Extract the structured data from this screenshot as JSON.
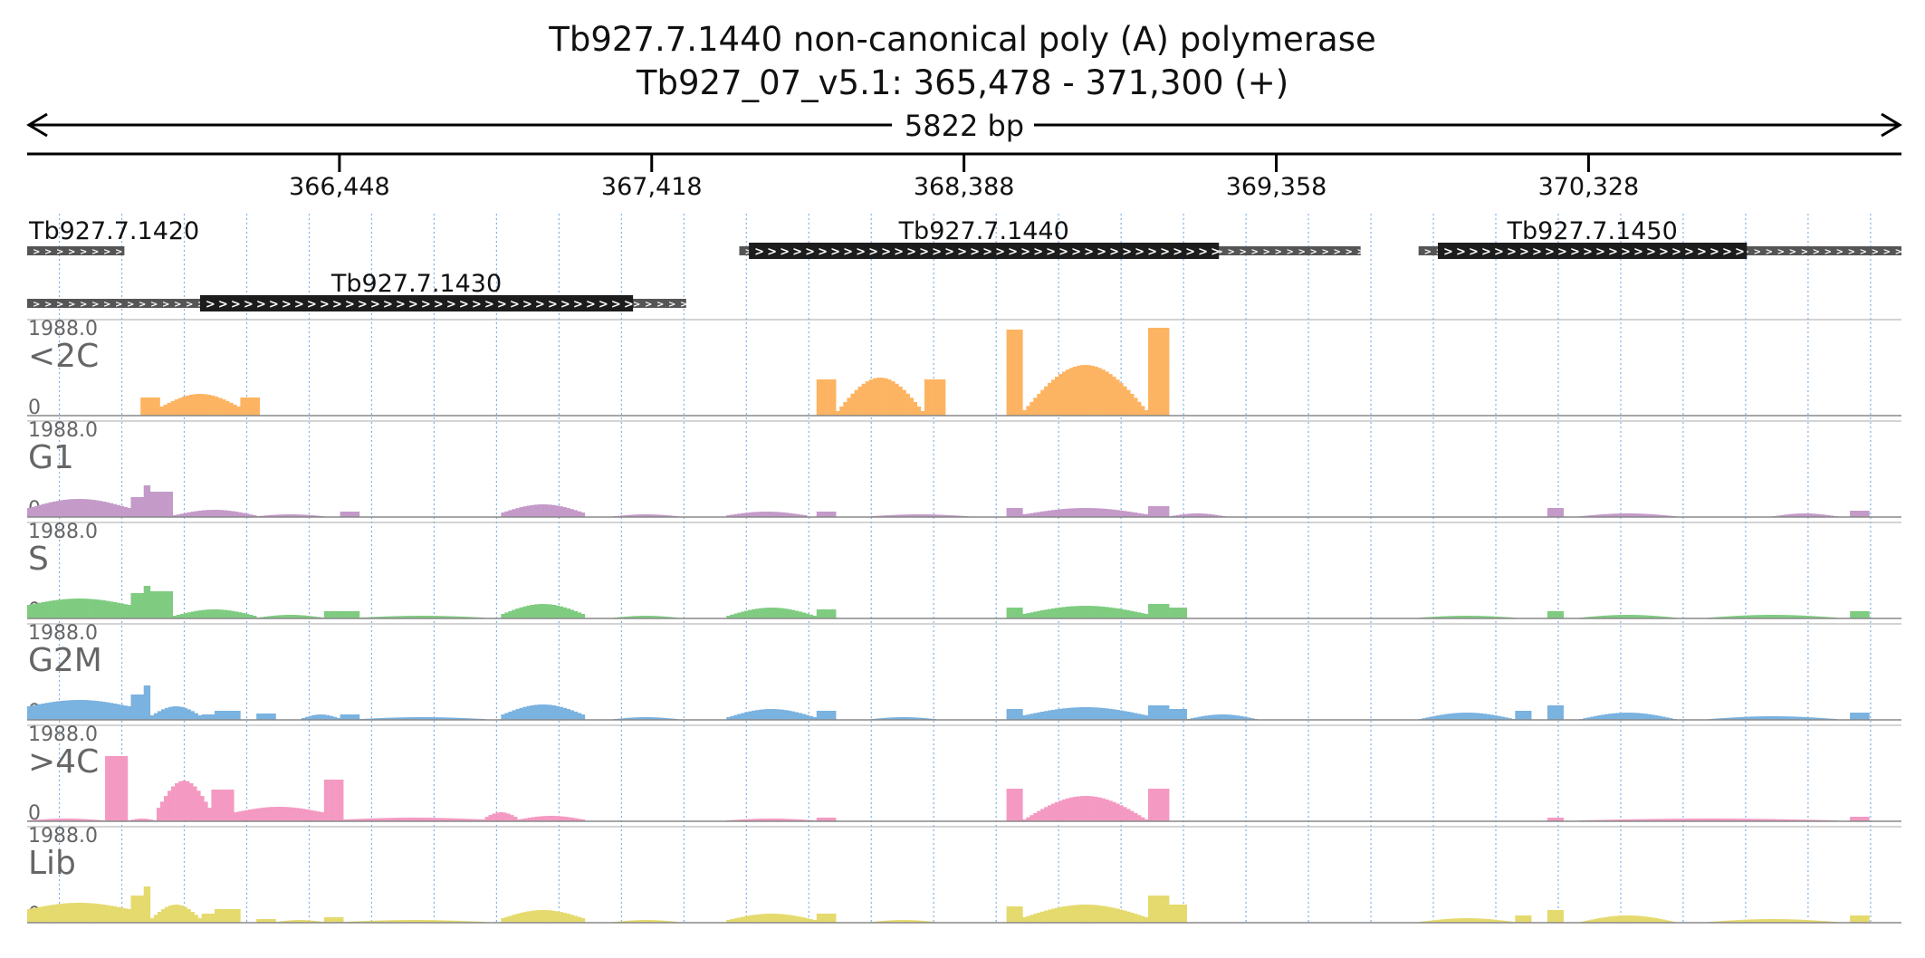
{
  "title": "Tb927.7.1440  non-canonical poly (A) polymerase",
  "subtitle": "Tb927_07_v5.1: 365,478 - 371,300 (+)",
  "span_label": "5822 bp",
  "region": {
    "start": 365478,
    "end": 371300
  },
  "ruler_ticks": [
    {
      "pos": 366448,
      "label": "366,448"
    },
    {
      "pos": 367418,
      "label": "367,418"
    },
    {
      "pos": 368388,
      "label": "368,388"
    },
    {
      "pos": 369358,
      "label": "369,358"
    },
    {
      "pos": 370328,
      "label": "370,328"
    }
  ],
  "genes": [
    {
      "id": "Tb927.7.1420",
      "row": 0,
      "utr": [
        365478,
        365780
      ],
      "cds": null
    },
    {
      "id": "Tb927.7.1430",
      "row": 1,
      "utr": [
        365478,
        367525
      ],
      "cds": [
        366015,
        367360
      ]
    },
    {
      "id": "Tb927.7.1440",
      "row": 0,
      "utr": [
        367690,
        369620
      ],
      "cds": [
        367720,
        369180
      ]
    },
    {
      "id": "Tb927.7.1450",
      "row": 0,
      "utr": [
        369800,
        371300
      ],
      "cds": [
        369860,
        370820
      ]
    }
  ],
  "track_max_label": "1988.0",
  "track_min_label": "0",
  "tracks": [
    {
      "name": "<2C",
      "color": "#fdb462"
    },
    {
      "name": "G1",
      "color": "#c49ac9"
    },
    {
      "name": "S",
      "color": "#7fcc81"
    },
    {
      "name": "G2M",
      "color": "#7ab2e0"
    },
    {
      "name": ">4C",
      "color": "#f49ac2"
    },
    {
      "name": "Lib",
      "color": "#e5da6d"
    }
  ],
  "track_profiles": {
    "<2C": [
      [
        365830,
        365890,
        0.2,
        0.2,
        "flat"
      ],
      [
        365890,
        366140,
        0.1,
        0.24,
        "hill"
      ],
      [
        366140,
        366200,
        0.2,
        0.2,
        "flat"
      ],
      [
        367930,
        367990,
        0.4,
        0.4,
        "flat"
      ],
      [
        367990,
        368265,
        0.05,
        0.42,
        "hill"
      ],
      [
        368265,
        368330,
        0.4,
        0.4,
        "flat"
      ],
      [
        368520,
        368570,
        0.92,
        0.95,
        "flat"
      ],
      [
        368570,
        368960,
        0.06,
        0.56,
        "hill"
      ],
      [
        368960,
        369025,
        0.97,
        0.97,
        "flat"
      ]
    ],
    "G1": [
      [
        365478,
        365800,
        0.1,
        0.2,
        "hill"
      ],
      [
        365800,
        365840,
        0.22,
        0.22,
        "flat"
      ],
      [
        365840,
        365860,
        0.35,
        0.35,
        "flat"
      ],
      [
        365860,
        365930,
        0.28,
        0.28,
        "flat"
      ],
      [
        365930,
        366190,
        0.02,
        0.08,
        "hill"
      ],
      [
        366190,
        366400,
        0.01,
        0.03,
        "hill"
      ],
      [
        366450,
        366510,
        0.06,
        0.06,
        "flat"
      ],
      [
        366950,
        367210,
        0.05,
        0.14,
        "hill"
      ],
      [
        367300,
        367500,
        0.01,
        0.03,
        "hill"
      ],
      [
        367650,
        367900,
        0.02,
        0.06,
        "hill"
      ],
      [
        367930,
        367990,
        0.06,
        0.06,
        "flat"
      ],
      [
        368100,
        368400,
        0.01,
        0.03,
        "hill"
      ],
      [
        368520,
        368570,
        0.1,
        0.1,
        "flat"
      ],
      [
        368570,
        368960,
        0.03,
        0.1,
        "hill"
      ],
      [
        368960,
        369025,
        0.12,
        0.12,
        "flat"
      ],
      [
        369025,
        369200,
        0.01,
        0.04,
        "hill"
      ],
      [
        370200,
        370250,
        0.1,
        0.1,
        "flat"
      ],
      [
        370300,
        370600,
        0.01,
        0.04,
        "hill"
      ],
      [
        370900,
        371100,
        0.01,
        0.04,
        "hill"
      ],
      [
        371140,
        371200,
        0.07,
        0.07,
        "flat"
      ]
    ],
    "S": [
      [
        365478,
        365800,
        0.15,
        0.22,
        "hill"
      ],
      [
        365800,
        365840,
        0.28,
        0.28,
        "flat"
      ],
      [
        365840,
        365860,
        0.36,
        0.36,
        "flat"
      ],
      [
        365860,
        365930,
        0.3,
        0.3,
        "flat"
      ],
      [
        365930,
        366190,
        0.03,
        0.1,
        "hill"
      ],
      [
        366190,
        366400,
        0.01,
        0.04,
        "hill"
      ],
      [
        366400,
        366460,
        0.08,
        0.08,
        "flat"
      ],
      [
        366460,
        366510,
        0.08,
        0.08,
        "flat"
      ],
      [
        366510,
        366900,
        0.01,
        0.03,
        "hill"
      ],
      [
        366950,
        367210,
        0.05,
        0.16,
        "hill"
      ],
      [
        367300,
        367500,
        0.01,
        0.03,
        "hill"
      ],
      [
        367650,
        367930,
        0.03,
        0.12,
        "hill"
      ],
      [
        367930,
        367990,
        0.1,
        0.1,
        "flat"
      ],
      [
        368520,
        368570,
        0.12,
        0.12,
        "flat"
      ],
      [
        368570,
        368960,
        0.05,
        0.14,
        "hill"
      ],
      [
        368960,
        369025,
        0.16,
        0.16,
        "flat"
      ],
      [
        369025,
        369080,
        0.12,
        0.12,
        "flat"
      ],
      [
        369800,
        370100,
        0.01,
        0.03,
        "hill"
      ],
      [
        370200,
        370250,
        0.08,
        0.08,
        "flat"
      ],
      [
        370300,
        370600,
        0.01,
        0.04,
        "hill"
      ],
      [
        370700,
        371100,
        0.01,
        0.04,
        "hill"
      ],
      [
        371140,
        371200,
        0.08,
        0.08,
        "flat"
      ]
    ],
    "G2M": [
      [
        365478,
        365800,
        0.15,
        0.22,
        "hill"
      ],
      [
        365800,
        365840,
        0.28,
        0.28,
        "flat"
      ],
      [
        365840,
        365860,
        0.38,
        0.38,
        "flat"
      ],
      [
        365860,
        366020,
        0.05,
        0.15,
        "hill"
      ],
      [
        366020,
        366060,
        0.06,
        0.06,
        "flat"
      ],
      [
        366060,
        366140,
        0.1,
        0.1,
        "flat"
      ],
      [
        366190,
        366250,
        0.07,
        0.07,
        "flat"
      ],
      [
        366330,
        366450,
        0.02,
        0.06,
        "hill"
      ],
      [
        366450,
        366510,
        0.06,
        0.06,
        "flat"
      ],
      [
        366510,
        366900,
        0.01,
        0.03,
        "hill"
      ],
      [
        366950,
        367210,
        0.06,
        0.17,
        "hill"
      ],
      [
        367300,
        367500,
        0.01,
        0.03,
        "hill"
      ],
      [
        367650,
        367930,
        0.03,
        0.12,
        "hill"
      ],
      [
        367930,
        367990,
        0.1,
        0.1,
        "flat"
      ],
      [
        368100,
        368300,
        0.01,
        0.03,
        "hill"
      ],
      [
        368520,
        368570,
        0.12,
        0.12,
        "flat"
      ],
      [
        368570,
        368960,
        0.05,
        0.14,
        "hill"
      ],
      [
        368960,
        369025,
        0.16,
        0.16,
        "flat"
      ],
      [
        369025,
        369080,
        0.12,
        0.12,
        "flat"
      ],
      [
        369080,
        369300,
        0.01,
        0.06,
        "hill"
      ],
      [
        369800,
        370100,
        0.01,
        0.08,
        "hill"
      ],
      [
        370100,
        370150,
        0.1,
        0.1,
        "flat"
      ],
      [
        370200,
        370250,
        0.16,
        0.16,
        "flat"
      ],
      [
        370300,
        370600,
        0.01,
        0.08,
        "hill"
      ],
      [
        370700,
        371100,
        0.01,
        0.04,
        "hill"
      ],
      [
        371140,
        371200,
        0.08,
        0.08,
        "flat"
      ]
    ],
    ">4C": [
      [
        365478,
        365720,
        0.01,
        0.03,
        "hill"
      ],
      [
        365720,
        365790,
        0.72,
        0.72,
        "flat"
      ],
      [
        365790,
        365880,
        0.01,
        0.03,
        "hill"
      ],
      [
        365880,
        366050,
        0.15,
        0.45,
        "hill"
      ],
      [
        366050,
        366120,
        0.35,
        0.35,
        "flat"
      ],
      [
        366120,
        366400,
        0.1,
        0.16,
        "hill"
      ],
      [
        366400,
        366460,
        0.46,
        0.46,
        "flat"
      ],
      [
        366460,
        366900,
        0.02,
        0.04,
        "hill"
      ],
      [
        366900,
        367000,
        0.05,
        0.1,
        "hill"
      ],
      [
        367000,
        367210,
        0.02,
        0.06,
        "hill"
      ],
      [
        367650,
        367930,
        0.01,
        0.03,
        "hill"
      ],
      [
        367930,
        367990,
        0.04,
        0.04,
        "flat"
      ],
      [
        368520,
        368570,
        0.36,
        0.36,
        "flat"
      ],
      [
        368570,
        368960,
        0.02,
        0.28,
        "hill"
      ],
      [
        368960,
        369025,
        0.36,
        0.36,
        "flat"
      ],
      [
        370200,
        370250,
        0.04,
        0.04,
        "flat"
      ],
      [
        370300,
        371100,
        0.01,
        0.03,
        "hill"
      ],
      [
        371140,
        371200,
        0.05,
        0.05,
        "flat"
      ]
    ],
    "Lib": [
      [
        365478,
        365800,
        0.15,
        0.22,
        "hill"
      ],
      [
        365800,
        365840,
        0.3,
        0.3,
        "flat"
      ],
      [
        365840,
        365860,
        0.4,
        0.4,
        "flat"
      ],
      [
        365860,
        366020,
        0.05,
        0.2,
        "hill"
      ],
      [
        366020,
        366060,
        0.1,
        0.1,
        "flat"
      ],
      [
        366060,
        366140,
        0.15,
        0.15,
        "flat"
      ],
      [
        366190,
        366250,
        0.04,
        0.04,
        "flat"
      ],
      [
        366250,
        366400,
        0.01,
        0.03,
        "hill"
      ],
      [
        366400,
        366460,
        0.06,
        0.06,
        "flat"
      ],
      [
        366460,
        366900,
        0.01,
        0.03,
        "hill"
      ],
      [
        366950,
        367210,
        0.05,
        0.14,
        "hill"
      ],
      [
        367300,
        367500,
        0.01,
        0.03,
        "hill"
      ],
      [
        367650,
        367930,
        0.03,
        0.1,
        "hill"
      ],
      [
        367930,
        367990,
        0.1,
        0.1,
        "flat"
      ],
      [
        368100,
        368300,
        0.01,
        0.03,
        "hill"
      ],
      [
        368520,
        368570,
        0.18,
        0.18,
        "flat"
      ],
      [
        368570,
        368960,
        0.06,
        0.2,
        "hill"
      ],
      [
        368960,
        369025,
        0.3,
        0.3,
        "flat"
      ],
      [
        369025,
        369080,
        0.2,
        0.2,
        "flat"
      ],
      [
        369800,
        370100,
        0.01,
        0.05,
        "hill"
      ],
      [
        370100,
        370150,
        0.08,
        0.08,
        "flat"
      ],
      [
        370200,
        370250,
        0.14,
        0.14,
        "flat"
      ],
      [
        370300,
        370600,
        0.01,
        0.08,
        "hill"
      ],
      [
        370700,
        371100,
        0.01,
        0.04,
        "hill"
      ],
      [
        371140,
        371200,
        0.08,
        0.08,
        "flat"
      ]
    ]
  }
}
